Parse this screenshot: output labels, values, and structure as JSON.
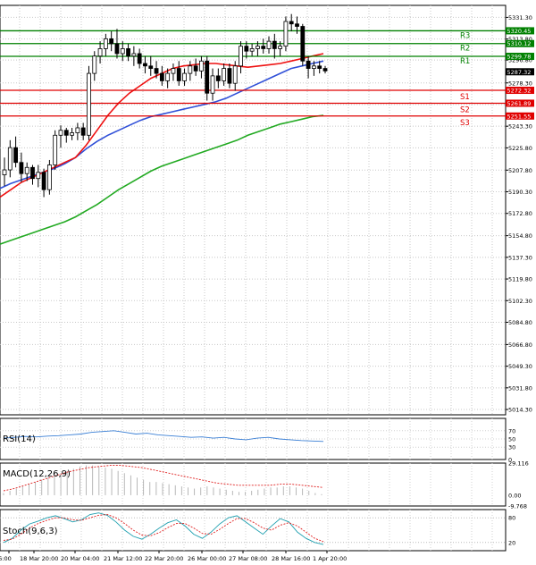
{
  "chart_data": {
    "type": "candlestick",
    "symbol": "S&P 500",
    "price_panel": {
      "ylim": [
        5010,
        5341
      ],
      "y_ticks": [
        "5331.30",
        "5313.80",
        "5296.80",
        "5278.30",
        "5260.80",
        "5243.30",
        "5225.80",
        "5207.80",
        "5190.30",
        "5172.80",
        "5154.80",
        "5137.30",
        "5119.80",
        "5102.30",
        "5084.80",
        "5066.80",
        "5049.30",
        "5031.80",
        "5014.30"
      ],
      "last_price": "5287.32",
      "last_price_value": 5287.32,
      "candles": [
        [
          5204,
          5218,
          5195,
          5208
        ],
        [
          5208,
          5232,
          5202,
          5226
        ],
        [
          5226,
          5235,
          5210,
          5214
        ],
        [
          5214,
          5222,
          5198,
          5205
        ],
        [
          5205,
          5214,
          5199,
          5210
        ],
        [
          5210,
          5212,
          5196,
          5201
        ],
        [
          5201,
          5212,
          5194,
          5206
        ],
        [
          5206,
          5209,
          5186,
          5192
        ],
        [
          5192,
          5216,
          5188,
          5212
        ],
        [
          5212,
          5240,
          5208,
          5236
        ],
        [
          5236,
          5244,
          5226,
          5240
        ],
        [
          5240,
          5242,
          5230,
          5236
        ],
        [
          5236,
          5242,
          5232,
          5238
        ],
        [
          5238,
          5246,
          5232,
          5242
        ],
        [
          5242,
          5246,
          5232,
          5236
        ],
        [
          5236,
          5292,
          5232,
          5286
        ],
        [
          5286,
          5304,
          5280,
          5300
        ],
        [
          5300,
          5312,
          5294,
          5306
        ],
        [
          5306,
          5318,
          5300,
          5314
        ],
        [
          5314,
          5320,
          5304,
          5310
        ],
        [
          5310,
          5322,
          5298,
          5302
        ],
        [
          5302,
          5312,
          5296,
          5306
        ],
        [
          5306,
          5310,
          5296,
          5300
        ],
        [
          5300,
          5308,
          5292,
          5302
        ],
        [
          5302,
          5306,
          5290,
          5294
        ],
        [
          5294,
          5300,
          5286,
          5292
        ],
        [
          5292,
          5300,
          5284,
          5290
        ],
        [
          5290,
          5296,
          5282,
          5286
        ],
        [
          5286,
          5292,
          5276,
          5280
        ],
        [
          5280,
          5290,
          5274,
          5286
        ],
        [
          5286,
          5294,
          5280,
          5290
        ],
        [
          5290,
          5296,
          5276,
          5280
        ],
        [
          5280,
          5290,
          5276,
          5286
        ],
        [
          5286,
          5296,
          5280,
          5292
        ],
        [
          5292,
          5298,
          5284,
          5288
        ],
        [
          5288,
          5300,
          5282,
          5296
        ],
        [
          5296,
          5300,
          5264,
          5270
        ],
        [
          5270,
          5290,
          5264,
          5284
        ],
        [
          5284,
          5290,
          5274,
          5280
        ],
        [
          5280,
          5294,
          5276,
          5290
        ],
        [
          5290,
          5294,
          5274,
          5278
        ],
        [
          5278,
          5296,
          5272,
          5292
        ],
        [
          5292,
          5312,
          5286,
          5308
        ],
        [
          5308,
          5312,
          5298,
          5304
        ],
        [
          5304,
          5310,
          5300,
          5306
        ],
        [
          5306,
          5312,
          5300,
          5308
        ],
        [
          5308,
          5314,
          5302,
          5306
        ],
        [
          5306,
          5316,
          5302,
          5312
        ],
        [
          5312,
          5318,
          5298,
          5306
        ],
        [
          5306,
          5312,
          5300,
          5308
        ],
        [
          5308,
          5332,
          5304,
          5328
        ],
        [
          5328,
          5334,
          5320,
          5326
        ],
        [
          5326,
          5332,
          5318,
          5324
        ],
        [
          5324,
          5326,
          5292,
          5296
        ],
        [
          5296,
          5300,
          5282,
          5290
        ],
        [
          5290,
          5296,
          5284,
          5292
        ],
        [
          5292,
          5296,
          5286,
          5290
        ],
        [
          5290,
          5292,
          5286,
          5288
        ]
      ],
      "ma_red": [
        5186,
        5192,
        5198,
        5202,
        5206,
        5210,
        5214,
        5218,
        5228,
        5240,
        5252,
        5262,
        5270,
        5276,
        5282,
        5286,
        5290,
        5292,
        5293,
        5294,
        5294,
        5293,
        5292,
        5291,
        5292,
        5293,
        5294,
        5296,
        5298,
        5300,
        5302
      ],
      "ma_blue": [
        5193,
        5197,
        5200,
        5203,
        5206,
        5209,
        5213,
        5218,
        5225,
        5231,
        5236,
        5240,
        5244,
        5248,
        5251,
        5253,
        5255,
        5257,
        5259,
        5261,
        5263,
        5266,
        5270,
        5274,
        5278,
        5282,
        5286,
        5290,
        5292,
        5294,
        5296
      ],
      "ma_green": [
        5148,
        5151,
        5154,
        5157,
        5160,
        5163,
        5166,
        5170,
        5175,
        5180,
        5186,
        5192,
        5197,
        5202,
        5207,
        5211,
        5214,
        5217,
        5220,
        5223,
        5226,
        5229,
        5232,
        5236,
        5239,
        5242,
        5245,
        5247,
        5249,
        5251,
        5252
      ]
    },
    "levels": [
      {
        "label": "R3",
        "price": "5320.45",
        "value": 5320.45,
        "color": "#008000"
      },
      {
        "label": "R2",
        "price": "5310.12",
        "value": 5310.12,
        "color": "#008000"
      },
      {
        "label": "R1",
        "price": "5299.78",
        "value": 5299.78,
        "color": "#008000"
      },
      {
        "label": "S1",
        "price": "5272.32",
        "value": 5272.32,
        "color": "#e00000"
      },
      {
        "label": "S2",
        "price": "5261.89",
        "value": 5261.89,
        "color": "#e00000"
      },
      {
        "label": "S3",
        "price": "5251.55",
        "value": 5251.55,
        "color": "#e00000"
      }
    ],
    "x_ticks": [
      "16:00",
      "18 Mar 20:00",
      "20 Mar 04:00",
      "21 Mar 12:00",
      "22 Mar 20:00",
      "26 Mar 00:00",
      "27 Mar 08:00",
      "28 Mar 16:00",
      "1 Apr 20:00"
    ],
    "rsi": {
      "label": "RSI(14)",
      "ticks": [
        "70",
        "50",
        "30",
        "0"
      ],
      "ylim": [
        0,
        100
      ],
      "values": [
        52,
        54,
        56,
        55,
        57,
        58,
        60,
        62,
        66,
        68,
        70,
        66,
        62,
        64,
        60,
        58,
        56,
        54,
        55,
        52,
        54,
        50,
        48,
        52,
        54,
        50,
        48,
        46,
        45,
        44
      ]
    },
    "macd": {
      "label": "MACD(12,26,9)",
      "ticks": [
        "29.116",
        "0.00",
        "-9.768"
      ],
      "ylim": [
        -9.768,
        29.116
      ],
      "histogram": [
        2,
        4,
        6,
        8,
        10,
        12,
        14,
        16,
        18,
        20,
        22,
        24,
        26,
        27,
        27,
        26,
        25,
        24,
        22,
        20,
        18,
        16,
        14,
        12,
        12,
        11,
        10,
        9,
        8,
        7,
        6,
        7,
        8,
        7,
        6,
        5,
        4,
        3,
        3,
        4,
        5,
        6,
        7,
        7,
        8,
        8,
        7,
        6,
        4,
        2,
        1
      ],
      "signal": [
        4,
        6,
        9,
        12,
        15,
        18,
        21,
        23,
        25,
        26,
        27,
        27,
        26,
        25,
        23,
        21,
        19,
        17,
        15,
        13,
        11,
        10,
        9,
        9,
        9,
        9,
        10,
        10,
        9,
        8,
        7
      ]
    },
    "stoch": {
      "label": "Stoch(9,6,3)",
      "ticks": [
        "80",
        "20"
      ],
      "ylim": [
        0,
        100
      ],
      "k": [
        20,
        30,
        50,
        65,
        72,
        80,
        85,
        78,
        70,
        75,
        88,
        92,
        86,
        70,
        50,
        35,
        28,
        40,
        55,
        68,
        75,
        60,
        40,
        30,
        45,
        65,
        80,
        85,
        70,
        55,
        40,
        60,
        78,
        70,
        45,
        30,
        20,
        15
      ],
      "d": [
        25,
        28,
        40,
        55,
        66,
        74,
        80,
        80,
        75,
        74,
        80,
        86,
        88,
        80,
        66,
        50,
        38,
        36,
        44,
        56,
        66,
        66,
        55,
        42,
        40,
        52,
        66,
        78,
        78,
        68,
        55,
        50,
        62,
        68,
        60,
        45,
        30,
        22
      ]
    }
  }
}
